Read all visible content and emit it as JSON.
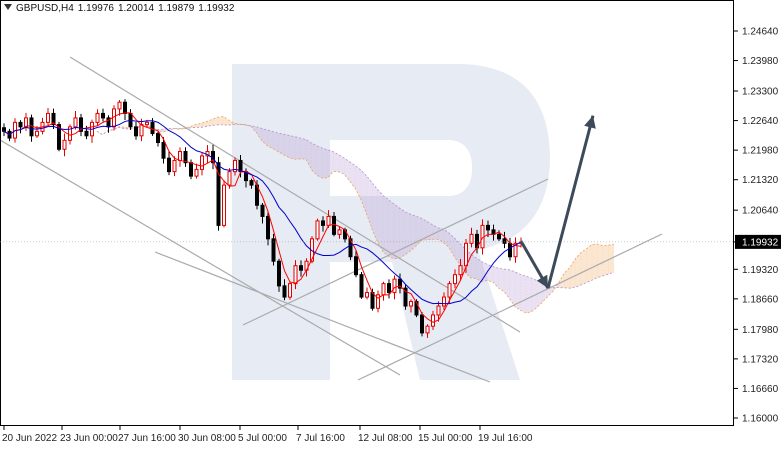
{
  "header": {
    "symbol": "GBPUSD,H4",
    "open": "1.19976",
    "high": "1.20014",
    "low": "1.19879",
    "close": "1.19932"
  },
  "colors": {
    "bull_candle": "#e00000",
    "bear_candle": "#000000",
    "tenkan": "#ff0000",
    "kijun": "#0000cc",
    "cloud_a": "#f0a050",
    "cloud_b": "#b090d0",
    "trendline": "#aaaaaa",
    "forecast_arrow": "#3c4a5a",
    "watermark": "#dde2ee",
    "price_box": "#000000"
  },
  "chart_data": {
    "type": "candlestick",
    "y_axis": {
      "range": [
        1.16,
        1.25
      ],
      "ticks": [
        "1.24640",
        "1.23980",
        "1.23300",
        "1.22640",
        "1.21980",
        "1.21320",
        "1.20640",
        "1.19932",
        "1.19320",
        "1.18660",
        "1.17980",
        "1.17320",
        "1.16660",
        "1.16000"
      ],
      "current_price": "1.19932"
    },
    "x_axis": {
      "ticks": [
        "20 Jun 2022",
        "23 Jun 00:00",
        "27 Jun 16:00",
        "30 Jun 08:00",
        "5 Jul 00:00",
        "7 Jul 16:00",
        "12 Jul 08:00",
        "15 Jul 00:00",
        "19 Jul 16:00"
      ]
    },
    "watermark": "R",
    "indicators": [
      "Ichimoku Kinko Hyo"
    ],
    "forecast": {
      "from": 1.1995,
      "via_low": 1.189,
      "target": 1.2275
    },
    "price_path": [
      1.224,
      1.2225,
      1.226,
      1.225,
      1.227,
      1.223,
      1.224,
      1.226,
      1.228,
      1.2255,
      1.22,
      1.222,
      1.225,
      1.227,
      1.224,
      1.223,
      1.226,
      1.228,
      1.227,
      1.225,
      1.229,
      1.2305,
      1.228,
      1.225,
      1.223,
      1.2255,
      1.226,
      1.2235,
      1.2215,
      1.218,
      1.215,
      1.2175,
      1.2195,
      1.217,
      1.214,
      1.2155,
      1.2185,
      1.2195,
      1.217,
      1.203,
      1.212,
      1.215,
      1.2175,
      1.215,
      1.213,
      1.212,
      1.2075,
      1.205,
      1.2,
      1.195,
      1.1895,
      1.187,
      1.19,
      1.194,
      1.193,
      1.195,
      1.2,
      1.204,
      1.203,
      1.205,
      1.201,
      1.202,
      1.2,
      1.196,
      1.192,
      1.187,
      1.188,
      1.1845,
      1.1875,
      1.19,
      1.188,
      1.191,
      1.189,
      1.185,
      1.186,
      1.183,
      1.179,
      1.1805,
      1.183,
      1.185,
      1.187,
      1.19,
      1.192,
      1.194,
      1.199,
      1.201,
      1.198,
      1.203,
      1.202,
      1.201,
      1.2,
      1.199,
      1.196,
      1.199,
      1.1993
    ]
  }
}
